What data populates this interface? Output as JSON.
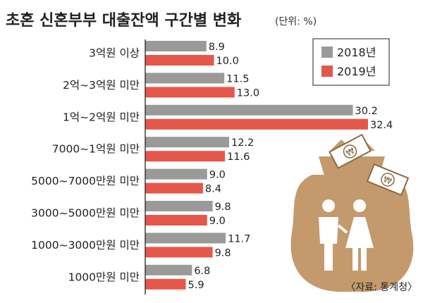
{
  "chart_data": {
    "type": "bar",
    "orientation": "horizontal",
    "title": "초혼 신혼부부 대출잔액 구간별 변화",
    "unit": "(단위: %)",
    "categories": [
      "3억원 이상",
      "2억~3억원 미만",
      "1억~2억원 미만",
      "7000~1억원 미만",
      "5000~7000만원 미만",
      "3000~5000만원 미만",
      "1000~3000만원 미만",
      "1000만원 미만"
    ],
    "series": [
      {
        "name": "2018년",
        "color": "#9a9a9a",
        "values": [
          8.9,
          11.5,
          30.2,
          12.2,
          9.0,
          9.8,
          11.7,
          6.8
        ],
        "labels": [
          "8.9",
          "11.5",
          "30.2",
          "12.2",
          "9.0",
          "9.8",
          "11.7",
          "6.8"
        ]
      },
      {
        "name": "2019년",
        "color": "#e5574a",
        "values": [
          10.0,
          13.0,
          32.4,
          11.6,
          8.4,
          9.0,
          9.8,
          5.9
        ],
        "labels": [
          "10.0",
          "13.0",
          "32.4",
          "11.6",
          "8.4",
          "9.0",
          "9.8",
          "5.9"
        ]
      }
    ],
    "xlim": [
      0,
      35
    ],
    "legend_position": "top-right",
    "source": "〈자료: 통계청〉"
  },
  "colors": {
    "axis": "#222222",
    "illustration": "#c49a6c"
  },
  "illustration": {
    "icons": [
      "money-bag-icon",
      "couple-icon",
      "banknote-icon"
    ],
    "currency_symbol": "₩"
  }
}
